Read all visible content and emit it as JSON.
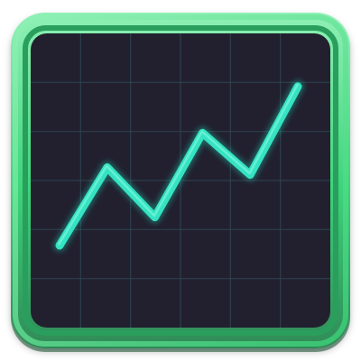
{
  "icon": {
    "semantic_name": "line-chart-icon",
    "colors": {
      "frame_outer": "#2f8a57",
      "frame_main": "#3cd57a",
      "frame_light": "#8ff0b5",
      "screen_bg": "#22202f",
      "grid": "#304956",
      "line": "#35e3c3",
      "line_glow": "#1ec2a6",
      "line_highlight": "#9fffe8"
    },
    "grid": {
      "columns": 6,
      "rows": 6
    },
    "trend": {
      "type": "line",
      "points": [
        [
          0,
          0
        ],
        [
          1,
          2.15
        ],
        [
          2,
          0.78
        ],
        [
          3,
          3.1
        ],
        [
          4,
          1.95
        ],
        [
          5,
          4.38
        ]
      ],
      "ylim": [
        0,
        4.5
      ]
    }
  }
}
